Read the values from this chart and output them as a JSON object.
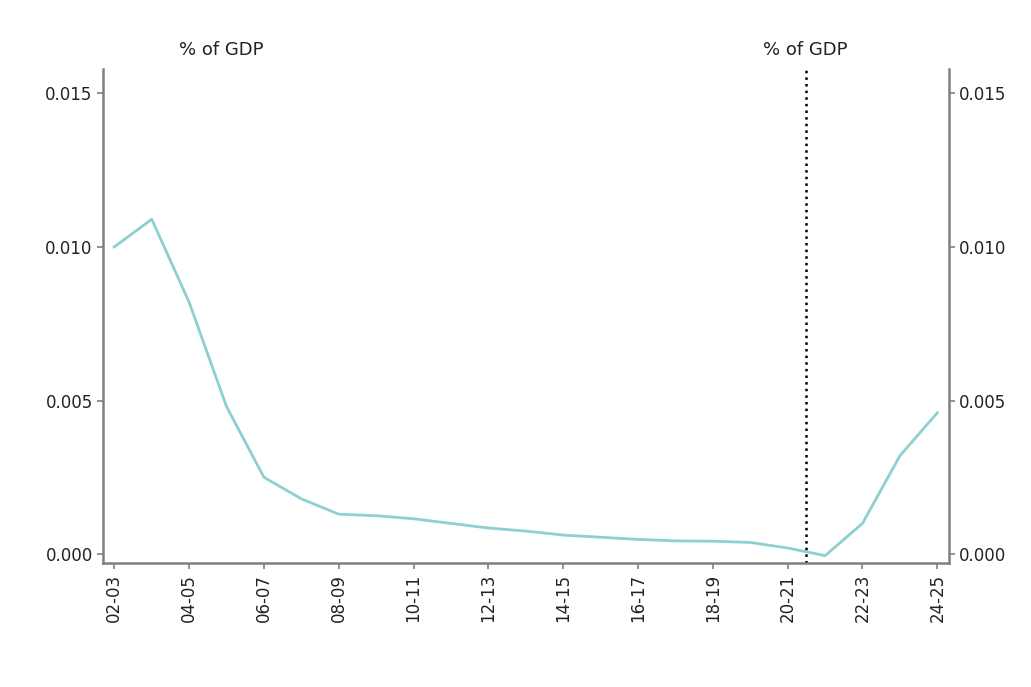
{
  "x_labels": [
    "02-03",
    "04-05",
    "06-07",
    "08-09",
    "10-11",
    "12-13",
    "14-15",
    "16-17",
    "18-19",
    "20-21",
    "22-23",
    "24-25"
  ],
  "x_tick_positions": [
    0,
    2,
    4,
    6,
    8,
    10,
    12,
    14,
    16,
    18,
    20,
    22
  ],
  "series_x": [
    0,
    1,
    2,
    3,
    4,
    5,
    6,
    7,
    8,
    9,
    10,
    11,
    12,
    13,
    14,
    15,
    16,
    17,
    18,
    19,
    20,
    21,
    22
  ],
  "series_y": [
    0.01,
    0.0109,
    0.0082,
    0.0048,
    0.0025,
    0.0018,
    0.0013,
    0.00125,
    0.00115,
    0.001,
    0.00085,
    0.00075,
    0.00062,
    0.00055,
    0.00048,
    0.00043,
    0.00042,
    0.00038,
    0.0002,
    -5e-05,
    0.001,
    0.0032,
    0.0046
  ],
  "line_color": "#8ECFCF",
  "vline_x": 18.5,
  "vline_color": "#000000",
  "ylim": [
    -0.0003,
    0.0158
  ],
  "xlim": [
    -0.3,
    22.3
  ],
  "yticks": [
    0.0,
    0.005,
    0.01,
    0.015
  ],
  "ylabel_left": "% of GDP",
  "ylabel_right": "% of GDP",
  "background_color": "#ffffff",
  "axis_color": "#808080",
  "tick_label_fontsize": 12,
  "label_fontsize": 13,
  "linewidth": 2.0
}
